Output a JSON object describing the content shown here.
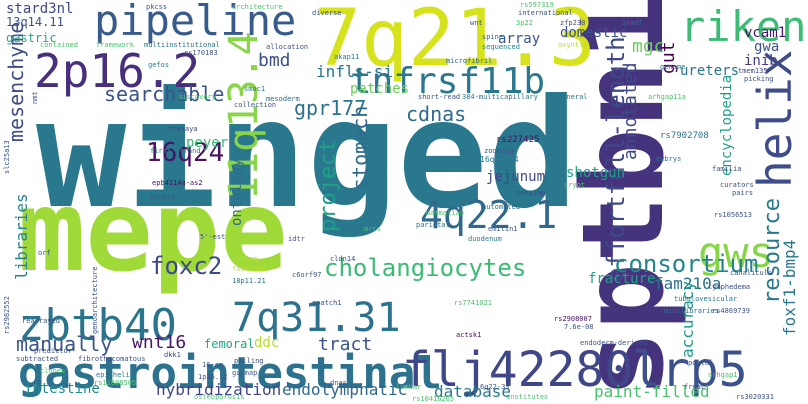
{
  "words": [
    {
      "text": "winged",
      "color": "#2a788e"
    },
    {
      "text": "mepe",
      "color": "#a0da39"
    },
    {
      "text": "sptbn1",
      "color": "#46337e"
    },
    {
      "text": "7q21.3",
      "color": "#d6e21b"
    },
    {
      "text": "gastrointestinal",
      "color": "#2c728e"
    },
    {
      "text": "flj42280",
      "color": "#3f4788"
    },
    {
      "text": "lrp5",
      "color": "#3b518b"
    },
    {
      "text": "zbtb40",
      "color": "#2b748e"
    },
    {
      "text": "pipeline",
      "color": "#375b8d"
    },
    {
      "text": "2p16.2",
      "color": "#472f7d"
    },
    {
      "text": "tnfrsf11b",
      "color": "#2a788e"
    },
    {
      "text": "riken",
      "color": "#3cbb75"
    },
    {
      "text": "helix",
      "color": "#3e4c8a"
    },
    {
      "text": "gws",
      "color": "#86d549"
    },
    {
      "text": "7q31.31",
      "color": "#2c728e"
    },
    {
      "text": "4q22.1",
      "color": "#31688e"
    },
    {
      "text": "11q13.4",
      "color": "#89d548"
    },
    {
      "text": "16q24",
      "color": "#471164"
    },
    {
      "text": "effortfull-length",
      "color": "#3e4989"
    },
    {
      "text": "cholangiocytes",
      "color": "#3cbb75"
    },
    {
      "text": "consortium",
      "color": "#25848e"
    },
    {
      "text": "foxc2",
      "color": "#3e4989"
    },
    {
      "text": "resource",
      "color": "#2a788e"
    },
    {
      "text": "gpr177",
      "color": "#2c728e"
    },
    {
      "text": "project",
      "color": "#1fa187"
    },
    {
      "text": "searchable",
      "color": "#3a538b"
    },
    {
      "text": "mesenchyme",
      "color": "#3e4c8a"
    },
    {
      "text": "cdnas",
      "color": "#306a8e"
    },
    {
      "text": "stomach",
      "color": "#306a8e"
    },
    {
      "text": "manually",
      "color": "#3a538b"
    },
    {
      "text": "wnt16",
      "color": "#481769"
    },
    {
      "text": "tract",
      "color": "#3b528b"
    },
    {
      "text": "intestine",
      "color": "#228c8d"
    },
    {
      "text": "hybridization",
      "color": "#3f4788"
    },
    {
      "text": "endolymphatic",
      "color": "#31688e"
    },
    {
      "text": "database",
      "color": "#2a788e"
    },
    {
      "text": "paint-filled",
      "color": "#4ac16d"
    },
    {
      "text": "foxf1-bmp4",
      "color": "#2a788e"
    },
    {
      "text": "fam210a",
      "color": "#2c728e"
    },
    {
      "text": "accuracy",
      "color": "#1f9a8a"
    },
    {
      "text": "fracture",
      "color": "#20a486"
    },
    {
      "text": "annotated",
      "color": "#3e4a89"
    },
    {
      "text": "gut",
      "color": "#440154"
    },
    {
      "text": "mgc",
      "color": "#6ccd5a"
    },
    {
      "text": "bmd",
      "color": "#3b518b"
    },
    {
      "text": "infls-si",
      "color": "#2b748e"
    },
    {
      "text": "libraries",
      "color": "#26828e"
    },
    {
      "text": "ontology",
      "color": "#306a8e"
    },
    {
      "text": "jejunum",
      "color": "#3e4a89"
    },
    {
      "text": "shotgun",
      "color": "#1fa187"
    },
    {
      "text": "candidate",
      "color": "#2a788e"
    },
    {
      "text": "peyer",
      "color": "#35b779"
    },
    {
      "text": "ddc",
      "color": "#b5de2b"
    },
    {
      "text": "femoral",
      "color": "#20a486"
    },
    {
      "text": "encyclopedia",
      "color": "#1f9e89"
    },
    {
      "text": "ureters",
      "color": "#2b748e"
    },
    {
      "text": "domestic",
      "color": "#3b528b"
    },
    {
      "text": "array",
      "color": "#3a538b"
    },
    {
      "text": "gwa",
      "color": "#3a538b"
    },
    {
      "text": "inib",
      "color": "#443a83"
    },
    {
      "text": "vcam1",
      "color": "#481668"
    },
    {
      "text": "stard3nl",
      "color": "#3e4989"
    },
    {
      "text": "13q14.11",
      "color": "#3b528b"
    },
    {
      "text": "gastric",
      "color": "#22a785"
    },
    {
      "text": "patches",
      "color": "#6ccd5a"
    },
    {
      "text": "rs227425",
      "color": "#471164"
    },
    {
      "text": "rs7902708",
      "color": "#2b748e"
    },
    {
      "text": "16q22-24",
      "color": "#2c728e"
    },
    {
      "text": "architecture",
      "color": "#4ac16d"
    },
    {
      "text": "pkcss",
      "color": "#3b528b"
    },
    {
      "text": "rs597319",
      "color": "#4ac16d"
    },
    {
      "text": "3p22",
      "color": "#4ac16d"
    },
    {
      "text": "zfp238",
      "color": "#3e4c8a"
    },
    {
      "text": "inadl",
      "color": "#2c728e"
    },
    {
      "text": "framework",
      "color": "#4ac16d"
    },
    {
      "text": "multiinstitutional",
      "color": "#2b748e"
    },
    {
      "text": "allocation",
      "color": "#3b528b"
    },
    {
      "text": "akap11",
      "color": "#2a788e"
    },
    {
      "text": "microfibril",
      "color": "#306a8e"
    },
    {
      "text": "spine",
      "color": "#306a8e"
    },
    {
      "text": "sequenced",
      "color": "#26828e"
    },
    {
      "text": "oxyntic",
      "color": "#b5de2b"
    },
    {
      "text": "genome",
      "color": "#2a788e"
    },
    {
      "text": "tmem135",
      "color": "#3e4989"
    },
    {
      "text": "picking",
      "color": "#3a538b"
    },
    {
      "text": "contained",
      "color": "#4ac16d"
    },
    {
      "text": "rs170183",
      "color": "#3b528b"
    },
    {
      "text": "gefos",
      "color": "#2a788e"
    },
    {
      "text": "mesoderm",
      "color": "#306a8e"
    },
    {
      "text": "smoc1",
      "color": "#2c728e"
    },
    {
      "text": "discovery",
      "color": "#4ac16d"
    },
    {
      "text": "collection",
      "color": "#3b528b"
    },
    {
      "text": "short-read",
      "color": "#3b528b"
    },
    {
      "text": "384-multicapillary",
      "color": "#2c728e"
    },
    {
      "text": "mineral",
      "color": "#2c728e"
    },
    {
      "text": "arhgap11a",
      "color": "#4ac16d"
    },
    {
      "text": "rtaaaya",
      "color": "#3e4989"
    },
    {
      "text": "first-strand",
      "color": "#2a788e"
    },
    {
      "text": "epb4114a-as2",
      "color": "#471164"
    },
    {
      "text": "errors",
      "color": "#3b528b"
    },
    {
      "text": "zooming",
      "color": "#3b528b"
    },
    {
      "text": "embrys",
      "color": "#2c728e"
    },
    {
      "text": "familia",
      "color": "#3b528b"
    },
    {
      "text": "curators",
      "color": "#3b528b"
    },
    {
      "text": "pairs",
      "color": "#3b528b"
    },
    {
      "text": "tossing",
      "color": "#3e4989"
    },
    {
      "text": "crypt",
      "color": "#4ac16d"
    },
    {
      "text": "automated",
      "color": "#306a8e"
    },
    {
      "text": "mammalian",
      "color": "#4ac16d"
    },
    {
      "text": "parietal",
      "color": "#2c728e"
    },
    {
      "text": "duodenum",
      "color": "#2a788e"
    },
    {
      "text": "emilin1",
      "color": "#3b528b"
    },
    {
      "text": "rs1056513",
      "color": "#3b528b"
    },
    {
      "text": "canaliculi",
      "color": "#3b528b"
    },
    {
      "text": "lymphedema",
      "color": "#3b528b"
    },
    {
      "text": "tubulovesicular",
      "color": "#2a788e"
    },
    {
      "text": "minilibraries",
      "color": "#2c728e"
    },
    {
      "text": "rs4869739",
      "color": "#3b528b"
    },
    {
      "text": "rs2908007",
      "color": "#471164"
    },
    {
      "text": "rs7741021",
      "color": "#4ac16d"
    },
    {
      "text": "7.6e-08",
      "color": "#3b528b"
    },
    {
      "text": "actsk1",
      "color": "#471164"
    },
    {
      "text": "random",
      "color": "#b5de2b"
    },
    {
      "text": "fourteen",
      "color": "#b5de2b"
    },
    {
      "text": "18p11.21",
      "color": "#2c728e"
    },
    {
      "text": "c6orf97",
      "color": "#3b528b"
    },
    {
      "text": "gpatch1",
      "color": "#3b528b"
    },
    {
      "text": "cldn14",
      "color": "#3e4989"
    },
    {
      "text": "mrcs",
      "color": "#4ac16d"
    },
    {
      "text": "5'-est",
      "color": "#3b528b"
    },
    {
      "text": "idtr",
      "color": "#3b528b"
    },
    {
      "text": "orf",
      "color": "#3b528b"
    },
    {
      "text": "rearrayed",
      "color": "#3b528b"
    },
    {
      "text": "predictor",
      "color": "#3b528b"
    },
    {
      "text": "subtracted",
      "color": "#3b528b"
    },
    {
      "text": "clones",
      "color": "#4ac16d"
    },
    {
      "text": "fibrothecomatous",
      "color": "#3b528b"
    },
    {
      "text": "epithelia",
      "color": "#2a788e"
    },
    {
      "text": "rs11898505",
      "color": "#4ac16d"
    },
    {
      "text": "polling",
      "color": "#3e4989"
    },
    {
      "text": "dkk1",
      "color": "#3b528b"
    },
    {
      "text": "16-cm",
      "color": "#3b528b"
    },
    {
      "text": "gudmap",
      "color": "#3b528b"
    },
    {
      "text": "1p36.12",
      "color": "#3b528b"
    },
    {
      "text": "osteoporosis",
      "color": "#4ac16d"
    },
    {
      "text": "dnas",
      "color": "#3b528b"
    },
    {
      "text": "lumbar",
      "color": "#4ac16d"
    },
    {
      "text": "institutes",
      "color": "#4ac16d"
    },
    {
      "text": "rs10416265",
      "color": "#4ac16d"
    },
    {
      "text": "rs3020331",
      "color": "#3b528b"
    },
    {
      "text": "freac",
      "color": "#3b528b"
    },
    {
      "text": "arhgap1",
      "color": "#4ac16d"
    },
    {
      "text": "portal",
      "color": "#3b528b"
    },
    {
      "text": "endoderm-derived",
      "color": "#3b528b"
    },
    {
      "text": "international",
      "color": "#3b528b"
    },
    {
      "text": "diverse",
      "color": "#3b528b"
    },
    {
      "text": "wnt",
      "color": "#3b528b"
    },
    {
      "text": "6q22-33",
      "color": "#3b528b"
    },
    {
      "text": "rs2982552",
      "color": "#3b528b"
    },
    {
      "text": "nmt",
      "color": "#3b528b"
    },
    {
      "text": "slc25a13",
      "color": "#3b528b"
    },
    {
      "text": "genoarchitecture",
      "color": "#3b528b"
    }
  ]
}
